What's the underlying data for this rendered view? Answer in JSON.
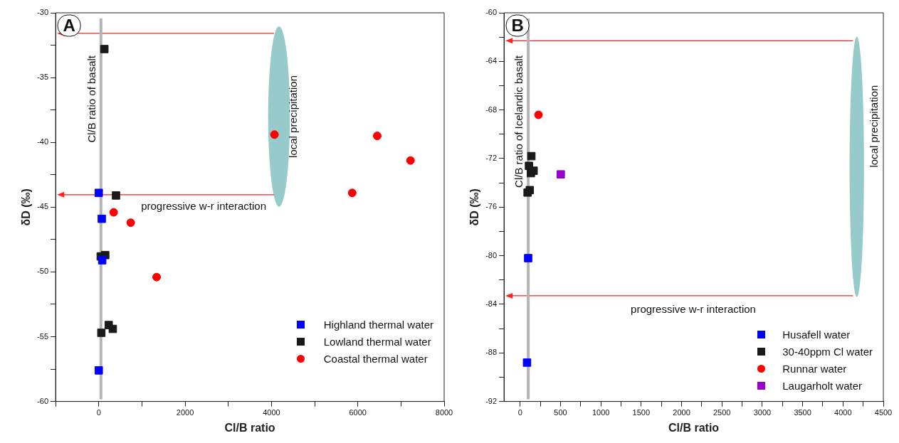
{
  "chart_data": [
    {
      "type": "scatter",
      "title": "A",
      "xlabel": "Cl/B ratio",
      "ylabel": "δD (‰)",
      "xlim": [
        -1000,
        8000
      ],
      "xticks": [
        {
          "value": -1000,
          "label": null
        },
        0,
        {
          "value": 1000,
          "label": null
        },
        2000,
        {
          "value": 3000,
          "label": null
        },
        4000,
        {
          "value": 5000,
          "label": null
        },
        6000,
        {
          "value": 7000,
          "label": null
        },
        8000
      ],
      "ylim": [
        -60,
        -30
      ],
      "yticks": [
        -60,
        {
          "value": -57.5,
          "label": null
        },
        -55,
        {
          "value": -52.5,
          "label": null
        },
        -50,
        {
          "value": -47.5,
          "label": null
        },
        -45,
        {
          "value": -42.5,
          "label": null
        },
        -40,
        {
          "value": -37.5,
          "label": null
        },
        -35,
        {
          "value": -32.5,
          "label": null
        },
        -30
      ],
      "grid": false,
      "legend": "bottom right",
      "series": [
        {
          "name": "Highland thermal water",
          "color": "#0000ff",
          "marker": "square",
          "x": [
            0,
            70,
            80,
            0
          ],
          "values": [
            -43.9,
            -45.9,
            -49.1,
            -57.6
          ]
        },
        {
          "name": "Lowland thermal water",
          "color": "#1a1a1a",
          "marker": "square",
          "x": [
            130,
            400,
            45,
            150,
            230,
            325,
            60
          ],
          "values": [
            -32.8,
            -44.1,
            -48.8,
            -48.7,
            -54.1,
            -54.4,
            -54.7
          ]
        },
        {
          "name": "Coastal thermal water",
          "color": "#ff0000",
          "marker": "circle",
          "x": [
            4070,
            6450,
            7220,
            5870,
            345,
            740,
            1340
          ],
          "values": [
            -39.4,
            -39.5,
            -41.4,
            -43.9,
            -45.4,
            -46.2,
            -50.4
          ]
        }
      ],
      "ref_lines": [
        {
          "axis": "x",
          "value": 50,
          "label": "Cl/B ratio of basalt",
          "color": "#b4b4b4"
        }
      ],
      "annotations": [
        "local precipitation",
        "progressive w-r interaction"
      ]
    },
    {
      "type": "scatter",
      "title": "B",
      "xlabel": "Cl/B ratio",
      "ylabel": "δD (‰)",
      "xlim": [
        -200,
        4500
      ],
      "xticks": [
        0,
        {
          "value": 250,
          "label": null
        },
        500,
        {
          "value": 750,
          "label": null
        },
        1000,
        {
          "value": 1250,
          "label": null
        },
        1500,
        {
          "value": 1750,
          "label": null
        },
        2000,
        {
          "value": 2250,
          "label": null
        },
        2500,
        {
          "value": 2750,
          "label": null
        },
        3000,
        {
          "value": 3250,
          "label": null
        },
        3500,
        {
          "value": 3750,
          "label": null
        },
        4000,
        {
          "value": 4250,
          "label": null
        },
        4500
      ],
      "ylim": [
        -92,
        -60
      ],
      "yticks": [
        -92,
        {
          "value": -90,
          "label": null
        },
        -88,
        {
          "value": -86,
          "label": null
        },
        -84,
        {
          "value": -82,
          "label": null
        },
        -80,
        {
          "value": -78,
          "label": null
        },
        -76,
        {
          "value": -74,
          "label": null
        },
        -72,
        {
          "value": -70,
          "label": null
        },
        -68,
        {
          "value": -66,
          "label": null
        },
        -64,
        {
          "value": -62,
          "label": null
        },
        -60
      ],
      "grid": false,
      "legend": "bottom right",
      "series": [
        {
          "name": "Husafell water",
          "color": "#0000ff",
          "marker": "square",
          "x": [
            99,
            85
          ],
          "values": [
            -80.2,
            -88.8
          ]
        },
        {
          "name": "30-40ppm Cl water",
          "color": "#1a1a1a",
          "marker": "square",
          "x": [
            139,
            109,
            167,
            133,
            119,
            92
          ],
          "values": [
            -71.8,
            -72.6,
            -73.0,
            -73.2,
            -74.6,
            -74.8
          ]
        },
        {
          "name": "Runnar water",
          "color": "#ff0000",
          "marker": "circle",
          "x": [
            227
          ],
          "values": [
            -68.4
          ]
        },
        {
          "name": "Laugarholt water",
          "color": "#9900cc",
          "marker": "square",
          "x": [
            503
          ],
          "values": [
            -73.3
          ]
        }
      ],
      "ref_lines": [
        {
          "axis": "x",
          "value": 100,
          "label": "Cl/B ratio of Icelandic basalt",
          "color": "#b4b4b4"
        }
      ],
      "annotations": [
        "local precipitation",
        "progressive w-r interaction"
      ]
    }
  ]
}
